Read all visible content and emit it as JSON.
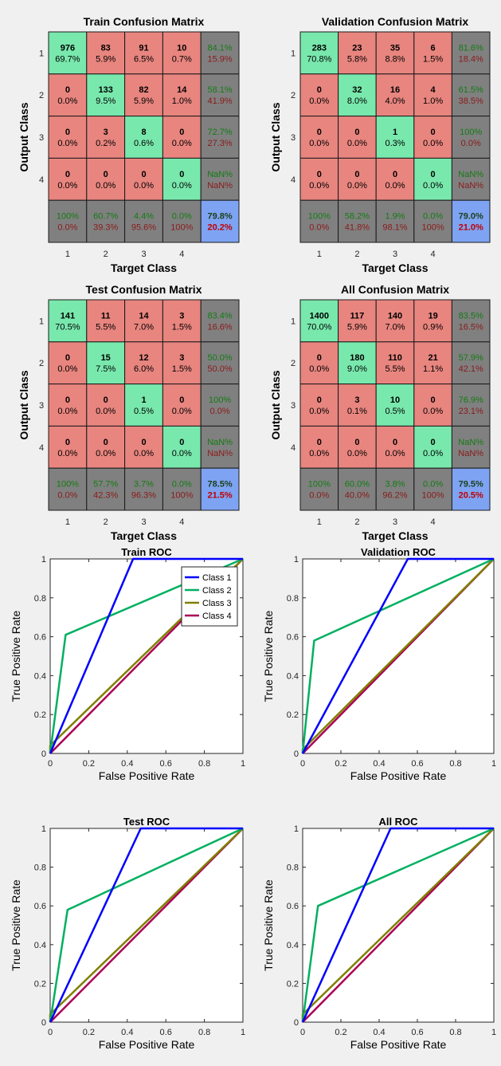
{
  "chart_data": [
    {
      "type": "heatmap",
      "title": "Train Confusion Matrix",
      "xlabel": "Target Class",
      "ylabel": "Output Class",
      "classes": [
        "1",
        "2",
        "3",
        "4"
      ],
      "counts": [
        [
          976,
          83,
          91,
          10
        ],
        [
          0,
          133,
          82,
          14
        ],
        [
          0,
          3,
          8,
          0
        ],
        [
          0,
          0,
          0,
          0
        ]
      ],
      "percents": [
        [
          "69.7%",
          "5.9%",
          "6.5%",
          "0.7%"
        ],
        [
          "0.0%",
          "9.5%",
          "5.9%",
          "1.0%"
        ],
        [
          "0.0%",
          "0.2%",
          "0.6%",
          "0.0%"
        ],
        [
          "0.0%",
          "0.0%",
          "0.0%",
          "0.0%"
        ]
      ],
      "row_summary": [
        [
          "84.1%",
          "15.9%"
        ],
        [
          "58.1%",
          "41.9%"
        ],
        [
          "72.7%",
          "27.3%"
        ],
        [
          "NaN%",
          "NaN%"
        ]
      ],
      "col_summary": [
        [
          "100%",
          "0.0%"
        ],
        [
          "60.7%",
          "39.3%"
        ],
        [
          "4.4%",
          "95.6%"
        ],
        [
          "0.0%",
          "100%"
        ]
      ],
      "overall": [
        "79.8%",
        "20.2%"
      ]
    },
    {
      "type": "heatmap",
      "title": "Validation Confusion Matrix",
      "xlabel": "Target Class",
      "ylabel": "Output Class",
      "classes": [
        "1",
        "2",
        "3",
        "4"
      ],
      "counts": [
        [
          283,
          23,
          35,
          6
        ],
        [
          0,
          32,
          16,
          4
        ],
        [
          0,
          0,
          1,
          0
        ],
        [
          0,
          0,
          0,
          0
        ]
      ],
      "percents": [
        [
          "70.8%",
          "5.8%",
          "8.8%",
          "1.5%"
        ],
        [
          "0.0%",
          "8.0%",
          "4.0%",
          "1.0%"
        ],
        [
          "0.0%",
          "0.0%",
          "0.3%",
          "0.0%"
        ],
        [
          "0.0%",
          "0.0%",
          "0.0%",
          "0.0%"
        ]
      ],
      "row_summary": [
        [
          "81.6%",
          "18.4%"
        ],
        [
          "61.5%",
          "38.5%"
        ],
        [
          "100%",
          "0.0%"
        ],
        [
          "NaN%",
          "NaN%"
        ]
      ],
      "col_summary": [
        [
          "100%",
          "0.0%"
        ],
        [
          "58.2%",
          "41.8%"
        ],
        [
          "1.9%",
          "98.1%"
        ],
        [
          "0.0%",
          "100%"
        ]
      ],
      "overall": [
        "79.0%",
        "21.0%"
      ]
    },
    {
      "type": "heatmap",
      "title": "Test Confusion Matrix",
      "xlabel": "Target Class",
      "ylabel": "Output Class",
      "classes": [
        "1",
        "2",
        "3",
        "4"
      ],
      "counts": [
        [
          141,
          11,
          14,
          3
        ],
        [
          0,
          15,
          12,
          3
        ],
        [
          0,
          0,
          1,
          0
        ],
        [
          0,
          0,
          0,
          0
        ]
      ],
      "percents": [
        [
          "70.5%",
          "5.5%",
          "7.0%",
          "1.5%"
        ],
        [
          "0.0%",
          "7.5%",
          "6.0%",
          "1.5%"
        ],
        [
          "0.0%",
          "0.0%",
          "0.5%",
          "0.0%"
        ],
        [
          "0.0%",
          "0.0%",
          "0.0%",
          "0.0%"
        ]
      ],
      "row_summary": [
        [
          "83.4%",
          "16.6%"
        ],
        [
          "50.0%",
          "50.0%"
        ],
        [
          "100%",
          "0.0%"
        ],
        [
          "NaN%",
          "NaN%"
        ]
      ],
      "col_summary": [
        [
          "100%",
          "0.0%"
        ],
        [
          "57.7%",
          "42.3%"
        ],
        [
          "3.7%",
          "96.3%"
        ],
        [
          "0.0%",
          "100%"
        ]
      ],
      "overall": [
        "78.5%",
        "21.5%"
      ]
    },
    {
      "type": "heatmap",
      "title": "All Confusion Matrix",
      "xlabel": "Target Class",
      "ylabel": "Output Class",
      "classes": [
        "1",
        "2",
        "3",
        "4"
      ],
      "counts": [
        [
          1400,
          117,
          140,
          19
        ],
        [
          0,
          180,
          110,
          21
        ],
        [
          0,
          3,
          10,
          0
        ],
        [
          0,
          0,
          0,
          0
        ]
      ],
      "percents": [
        [
          "70.0%",
          "5.9%",
          "7.0%",
          "0.9%"
        ],
        [
          "0.0%",
          "9.0%",
          "5.5%",
          "1.1%"
        ],
        [
          "0.0%",
          "0.1%",
          "0.5%",
          "0.0%"
        ],
        [
          "0.0%",
          "0.0%",
          "0.0%",
          "0.0%"
        ]
      ],
      "row_summary": [
        [
          "83.5%",
          "16.5%"
        ],
        [
          "57.9%",
          "42.1%"
        ],
        [
          "76.9%",
          "23.1%"
        ],
        [
          "NaN%",
          "NaN%"
        ]
      ],
      "col_summary": [
        [
          "100%",
          "0.0%"
        ],
        [
          "60.0%",
          "40.0%"
        ],
        [
          "3.8%",
          "96.2%"
        ],
        [
          "0.0%",
          "100%"
        ]
      ],
      "overall": [
        "79.5%",
        "20.5%"
      ]
    },
    {
      "type": "line",
      "title": "Train ROC",
      "xlabel": "False Positive Rate",
      "ylabel": "True Positive Rate",
      "xlim": [
        0,
        1
      ],
      "ylim": [
        0,
        1
      ],
      "xticks": [
        "0",
        "0.2",
        "0.4",
        "0.6",
        "0.8",
        "1"
      ],
      "yticks": [
        "0",
        "0.2",
        "0.4",
        "0.6",
        "0.8",
        "1"
      ],
      "legend": "top-right",
      "series": [
        {
          "name": "Class 1",
          "color": "#0000ff",
          "x": [
            0,
            0.43,
            1
          ],
          "y": [
            0,
            1,
            1
          ]
        },
        {
          "name": "Class 2",
          "color": "#00b060",
          "x": [
            0,
            0.08,
            1
          ],
          "y": [
            0,
            0.61,
            1
          ]
        },
        {
          "name": "Class 3",
          "color": "#808000",
          "x": [
            0,
            0,
            1
          ],
          "y": [
            0,
            0.04,
            1
          ]
        },
        {
          "name": "Class 4",
          "color": "#aa0055",
          "x": [
            0,
            1
          ],
          "y": [
            0,
            1
          ]
        }
      ]
    },
    {
      "type": "line",
      "title": "Validation ROC",
      "xlabel": "False Positive Rate",
      "ylabel": "True Positive Rate",
      "xlim": [
        0,
        1
      ],
      "ylim": [
        0,
        1
      ],
      "xticks": [
        "0",
        "0.2",
        "0.4",
        "0.6",
        "0.8",
        "1"
      ],
      "yticks": [
        "0",
        "0.2",
        "0.4",
        "0.6",
        "0.8",
        "1"
      ],
      "series": [
        {
          "color": "#0000ff",
          "x": [
            0,
            0.55,
            1
          ],
          "y": [
            0,
            1,
            1
          ]
        },
        {
          "color": "#00b060",
          "x": [
            0,
            0.06,
            1
          ],
          "y": [
            0,
            0.58,
            1
          ]
        },
        {
          "color": "#808000",
          "x": [
            0,
            0,
            1
          ],
          "y": [
            0,
            0.02,
            1
          ]
        },
        {
          "color": "#aa0055",
          "x": [
            0,
            1
          ],
          "y": [
            0,
            1
          ]
        }
      ]
    },
    {
      "type": "line",
      "title": "Test ROC",
      "xlabel": "False Positive Rate",
      "ylabel": "True Positive Rate",
      "xlim": [
        0,
        1
      ],
      "ylim": [
        0,
        1
      ],
      "xticks": [
        "0",
        "0.2",
        "0.4",
        "0.6",
        "0.8",
        "1"
      ],
      "yticks": [
        "0",
        "0.2",
        "0.4",
        "0.6",
        "0.8",
        "1"
      ],
      "series": [
        {
          "color": "#0000ff",
          "x": [
            0,
            0.47,
            1
          ],
          "y": [
            0,
            1,
            1
          ]
        },
        {
          "color": "#00b060",
          "x": [
            0,
            0.09,
            1
          ],
          "y": [
            0,
            0.58,
            1
          ]
        },
        {
          "color": "#808000",
          "x": [
            0,
            0,
            1
          ],
          "y": [
            0,
            0.04,
            1
          ]
        },
        {
          "color": "#aa0055",
          "x": [
            0,
            1
          ],
          "y": [
            0,
            1
          ]
        }
      ]
    },
    {
      "type": "line",
      "title": "All ROC",
      "xlabel": "False Positive Rate",
      "ylabel": "True Positive Rate",
      "xlim": [
        0,
        1
      ],
      "ylim": [
        0,
        1
      ],
      "xticks": [
        "0",
        "0.2",
        "0.4",
        "0.6",
        "0.8",
        "1"
      ],
      "yticks": [
        "0",
        "0.2",
        "0.4",
        "0.6",
        "0.8",
        "1"
      ],
      "series": [
        {
          "color": "#0000ff",
          "x": [
            0,
            0.46,
            1
          ],
          "y": [
            0,
            1,
            1
          ]
        },
        {
          "color": "#00b060",
          "x": [
            0,
            0.08,
            1
          ],
          "y": [
            0,
            0.6,
            1
          ]
        },
        {
          "color": "#808000",
          "x": [
            0,
            0,
            1
          ],
          "y": [
            0,
            0.04,
            1
          ]
        },
        {
          "color": "#aa0055",
          "x": [
            0,
            1
          ],
          "y": [
            0,
            1
          ]
        }
      ]
    }
  ],
  "colors": {
    "correct": "#79e8ad",
    "incorrect": "#e8857f",
    "summary": "#808080",
    "overall": "#7ea3f2",
    "good_text": "#137b13",
    "bad_text": "#8b1a1a",
    "overall_good_text": "#1b3f1b",
    "overall_bad_text": "#c00000"
  }
}
